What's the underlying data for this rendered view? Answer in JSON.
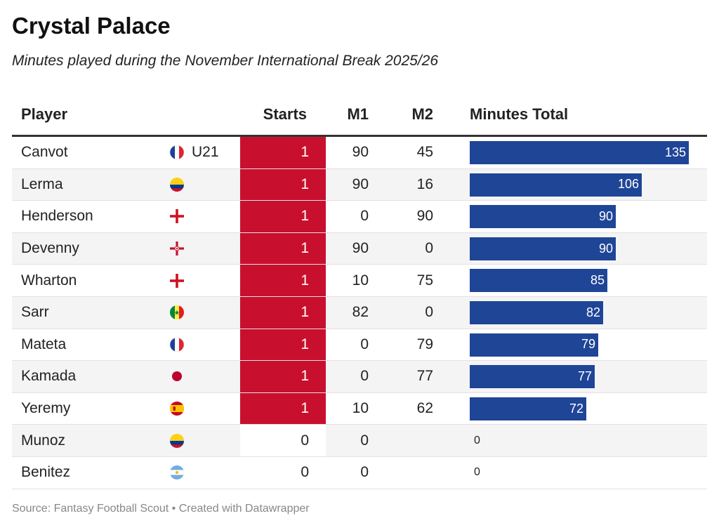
{
  "title": "Crystal Palace",
  "subtitle": "Minutes played during the November International Break 2025/26",
  "footer": "Source: Fantasy Football Scout • Created with Datawrapper",
  "colors": {
    "starts_highlight": "#c8102e",
    "bar": "#1f4597"
  },
  "chart_data": {
    "type": "table",
    "columns": [
      "Player",
      "Starts",
      "M1",
      "M2",
      "Minutes Total"
    ],
    "max_minutes": 135,
    "rows": [
      {
        "player": "Canvot",
        "flag": "france-flag-icon",
        "note": "U21",
        "starts": "1",
        "m1": "90",
        "m2": "45",
        "total": 135
      },
      {
        "player": "Lerma",
        "flag": "colombia-flag-icon",
        "note": "",
        "starts": "1",
        "m1": "90",
        "m2": "16",
        "total": 106
      },
      {
        "player": "Henderson",
        "flag": "england-flag-icon",
        "note": "",
        "starts": "1",
        "m1": "0",
        "m2": "90",
        "total": 90
      },
      {
        "player": "Devenny",
        "flag": "northern-ireland-flag-icon",
        "note": "",
        "starts": "1",
        "m1": "90",
        "m2": "0",
        "total": 90
      },
      {
        "player": "Wharton",
        "flag": "england-flag-icon",
        "note": "",
        "starts": "1",
        "m1": "10",
        "m2": "75",
        "total": 85
      },
      {
        "player": "Sarr",
        "flag": "senegal-flag-icon",
        "note": "",
        "starts": "1",
        "m1": "82",
        "m2": "0",
        "total": 82
      },
      {
        "player": "Mateta",
        "flag": "france-flag-icon",
        "note": "",
        "starts": "1",
        "m1": "0",
        "m2": "79",
        "total": 79
      },
      {
        "player": "Kamada",
        "flag": "japan-flag-icon",
        "note": "",
        "starts": "1",
        "m1": "0",
        "m2": "77",
        "total": 77
      },
      {
        "player": "Yeremy",
        "flag": "spain-flag-icon",
        "note": "",
        "starts": "1",
        "m1": "10",
        "m2": "62",
        "total": 72
      },
      {
        "player": "Munoz",
        "flag": "colombia-flag-icon",
        "note": "",
        "starts": "0",
        "m1": "0",
        "m2": "",
        "total": 0
      },
      {
        "player": "Benitez",
        "flag": "argentina-flag-icon",
        "note": "",
        "starts": "0",
        "m1": "0",
        "m2": "",
        "total": 0
      }
    ]
  }
}
